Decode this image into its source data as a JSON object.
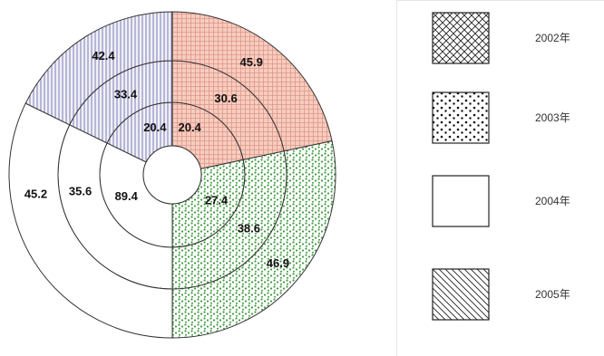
{
  "chart_data": {
    "type": "pie",
    "variant": "nested-donut",
    "legend": {
      "placement": "right",
      "entries": [
        "2002年",
        "2003年",
        "2004年",
        "2005年"
      ]
    },
    "rings": [
      {
        "ring": "inner",
        "values": [
          20.4,
          27.4,
          89.4,
          20.4
        ]
      },
      {
        "ring": "middle",
        "values": [
          30.6,
          38.6,
          35.6,
          33.4
        ]
      },
      {
        "ring": "outer",
        "values": [
          45.9,
          46.9,
          45.2,
          42.4
        ]
      }
    ],
    "segments": [
      {
        "name": "top-right",
        "fill_color": "#f2c2b4",
        "pattern": "grid"
      },
      {
        "name": "bottom-right",
        "fill_color": "#3d9a3d",
        "pattern": "dots"
      },
      {
        "name": "left",
        "fill_color": "#ffffff",
        "pattern": "none"
      },
      {
        "name": "top-left",
        "fill_color": "#ececf6",
        "pattern": "vertical-lines"
      }
    ]
  }
}
